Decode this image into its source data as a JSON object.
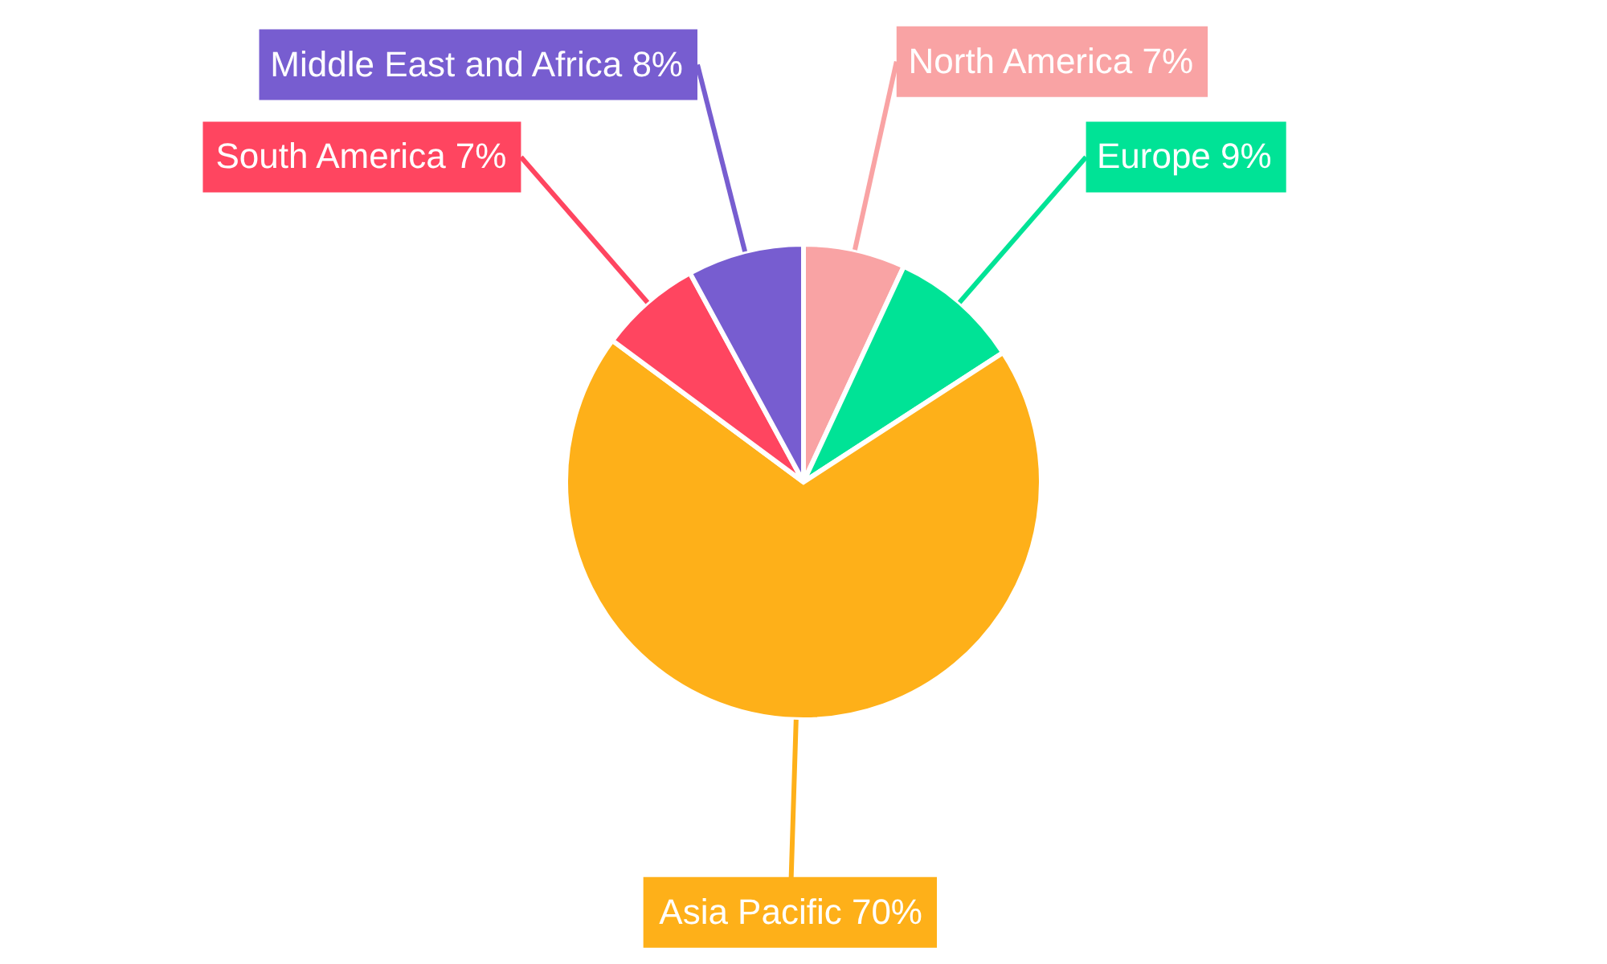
{
  "chart_data": {
    "type": "pie",
    "categories": [
      "North America",
      "Europe",
      "Asia Pacific",
      "South America",
      "Middle East and Africa"
    ],
    "values": [
      7,
      9,
      70,
      7,
      8
    ],
    "colors": [
      "#f9a3a4",
      "#00e396",
      "#feb019",
      "#ff4560",
      "#775dd0"
    ],
    "value_labels": [
      "7%",
      "9%",
      "70%",
      "7%",
      "8%"
    ],
    "legend": false
  }
}
